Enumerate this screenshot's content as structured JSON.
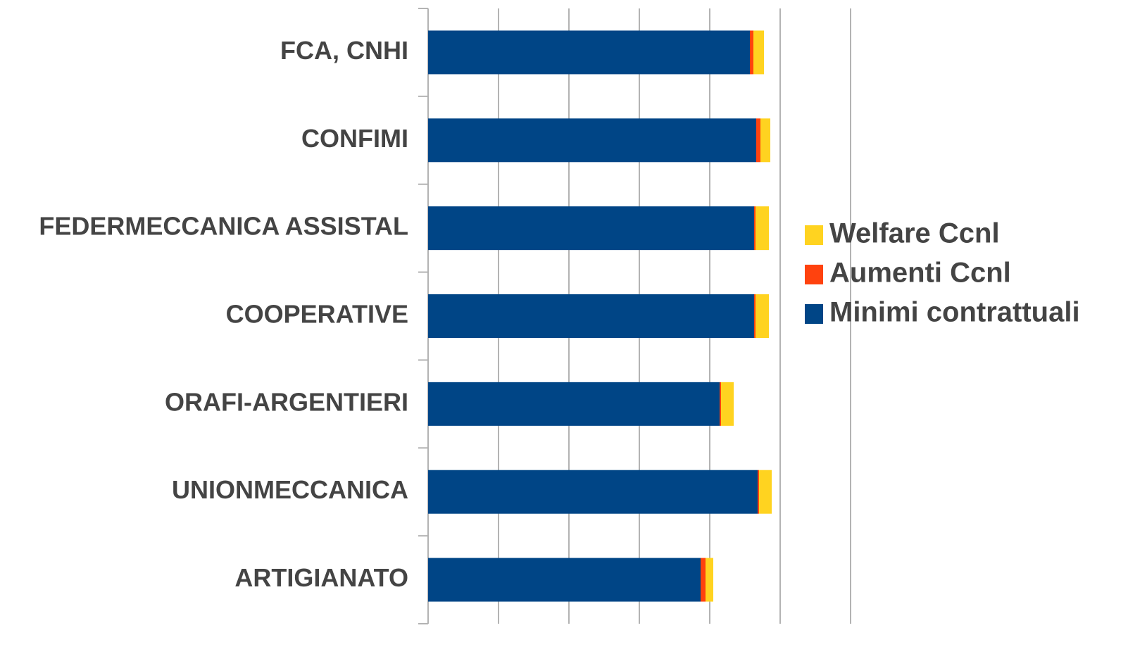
{
  "chart_data": {
    "type": "stacked-barh",
    "categories": [
      "FCA, CNHI",
      "CONFIMI",
      "FEDERMECCANICA ASSISTAL",
      "COOPERATIVE",
      "ORAFI-ARGENTIERI",
      "UNIONMECCANICA",
      "ARTIGIANATO"
    ],
    "series": [
      {
        "name": "Minimi contrattuali",
        "color": "#004586",
        "values": [
          4.57,
          4.66,
          4.63,
          4.63,
          4.14,
          4.68,
          3.87
        ]
      },
      {
        "name": "Aumenti Ccnl",
        "color": "#ff420e",
        "values": [
          0.05,
          0.06,
          0.02,
          0.02,
          0.02,
          0.02,
          0.07
        ]
      },
      {
        "name": "Welfare Ccnl",
        "color": "#ffd320",
        "values": [
          0.15,
          0.14,
          0.19,
          0.19,
          0.18,
          0.18,
          0.11
        ]
      }
    ],
    "xlim": [
      0,
      6
    ],
    "xticks": [
      0,
      1,
      2,
      3,
      4,
      5,
      6
    ],
    "grid": true,
    "legend": "right"
  }
}
